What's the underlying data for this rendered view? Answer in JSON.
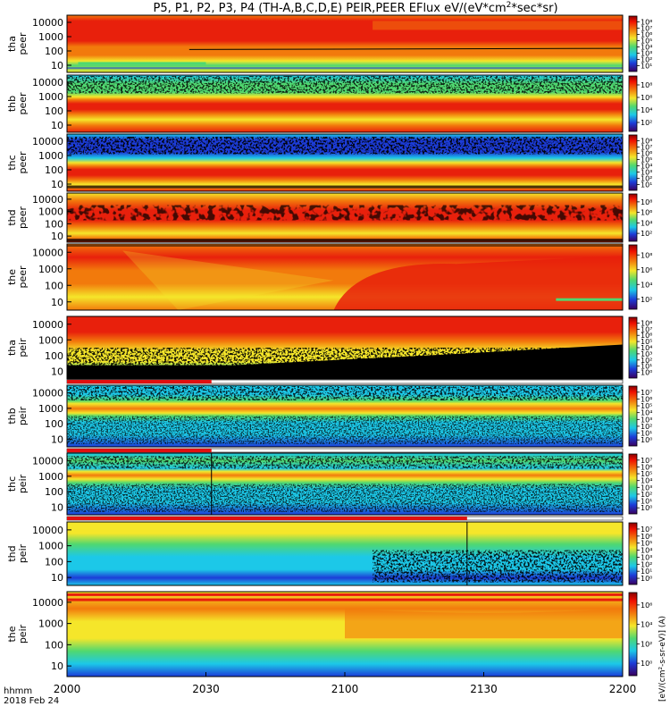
{
  "chart_data": {
    "type": "heatmap",
    "title": "P5, P1, P2, P3, P4 (TH-A,B,C,D,E) PEIR,PEER EFlux eV/(eV*cm²*sec*sr)",
    "title_base": "P5, P1, P2, P3, P4 (TH-A,B,C,D,E) PEIR,PEER EFlux eV/(eV*cm",
    "title_sup": "2",
    "title_tail": "*sec*sr)",
    "x_axis": {
      "label_line1": "hhmm",
      "label_line2": "2018 Feb 24",
      "ticks": [
        "2000",
        "2030",
        "2100",
        "2130",
        "2200"
      ],
      "range": [
        "20:00",
        "22:00"
      ]
    },
    "colorbar_unit": "[eV/(cm²-s-sr-eV)] (A)",
    "panels": [
      {
        "id": "tha-peer",
        "label1": "tha",
        "label2": "peer",
        "species": "electron",
        "probe": "a",
        "yticks": [
          "10000",
          "1000",
          "100",
          "10"
        ],
        "cbar_ticks": [
          "10⁸",
          "10⁷",
          "10⁶",
          "10⁵",
          "10⁴",
          "10³",
          "10²",
          "10¹"
        ]
      },
      {
        "id": "thb-peer",
        "label1": "thb",
        "label2": "peer",
        "species": "electron",
        "probe": "b",
        "yticks": [
          "10000",
          "1000",
          "100",
          "10"
        ],
        "cbar_ticks": [
          "10⁸",
          "10⁶",
          "10⁴",
          "10²"
        ]
      },
      {
        "id": "thc-peer",
        "label1": "thc",
        "label2": "peer",
        "species": "electron",
        "probe": "c",
        "yticks": [
          "10000",
          "1000",
          "100",
          "10"
        ],
        "cbar_ticks": [
          "10⁸",
          "10⁷",
          "10⁶",
          "10⁵",
          "10⁴",
          "10³",
          "10²",
          "10¹"
        ]
      },
      {
        "id": "thd-peer",
        "label1": "thd",
        "label2": "peer",
        "species": "electron",
        "probe": "d",
        "yticks": [
          "10000",
          "1000",
          "100",
          "10"
        ],
        "cbar_ticks": [
          "10⁸",
          "10⁶",
          "10⁴",
          "10²"
        ]
      },
      {
        "id": "the-peer",
        "label1": "the",
        "label2": "peer",
        "species": "electron",
        "probe": "e",
        "yticks": [
          "10000",
          "1000",
          "100",
          "10"
        ],
        "cbar_ticks": [
          "10⁸",
          "10⁶",
          "10⁴",
          "10²"
        ]
      },
      {
        "id": "tha-peir",
        "label1": "tha",
        "label2": "peir",
        "species": "ion",
        "probe": "a",
        "yticks": [
          "10000",
          "1000",
          "100",
          "10"
        ],
        "cbar_ticks": [
          "10⁸",
          "10⁷",
          "10⁶",
          "10⁵",
          "10⁴",
          "10³",
          "10²",
          "10¹",
          "10⁰"
        ]
      },
      {
        "id": "thb-peir",
        "label1": "thb",
        "label2": "peir",
        "species": "ion",
        "probe": "b",
        "yticks": [
          "10000",
          "1000",
          "100",
          "10"
        ],
        "cbar_ticks": [
          "10⁷",
          "10⁶",
          "10⁵",
          "10⁴",
          "10³",
          "10²",
          "10¹",
          "10⁰"
        ]
      },
      {
        "id": "thc-peir",
        "label1": "thc",
        "label2": "peir",
        "species": "ion",
        "probe": "c",
        "yticks": [
          "10000",
          "1000",
          "100",
          "10"
        ],
        "cbar_ticks": [
          "10⁷",
          "10⁶",
          "10⁵",
          "10⁴",
          "10³",
          "10²",
          "10¹",
          "10⁰"
        ]
      },
      {
        "id": "thd-peir",
        "label1": "thd",
        "label2": "peir",
        "species": "ion",
        "probe": "d",
        "yticks": [
          "10000",
          "1000",
          "100",
          "10"
        ],
        "cbar_ticks": [
          "10⁷",
          "10⁶",
          "10⁵",
          "10⁴",
          "10³",
          "10²",
          "10¹",
          "10⁰"
        ]
      },
      {
        "id": "the-peir",
        "label1": "the",
        "label2": "peir",
        "species": "ion",
        "probe": "e",
        "yticks": [
          "10000",
          "1000",
          "100",
          "10"
        ],
        "cbar_ticks": [
          "10⁶",
          "10⁴",
          "10²",
          "10⁰"
        ]
      }
    ],
    "colors": {
      "red": "#e8200c",
      "orange": "#f27a0c",
      "yellow": "#f5e62a",
      "green": "#50d870",
      "cyan": "#1cc8e8",
      "blue": "#1c3cd8",
      "navy": "#0a0a70",
      "black": "#000000",
      "status_red": "#e01010"
    }
  }
}
